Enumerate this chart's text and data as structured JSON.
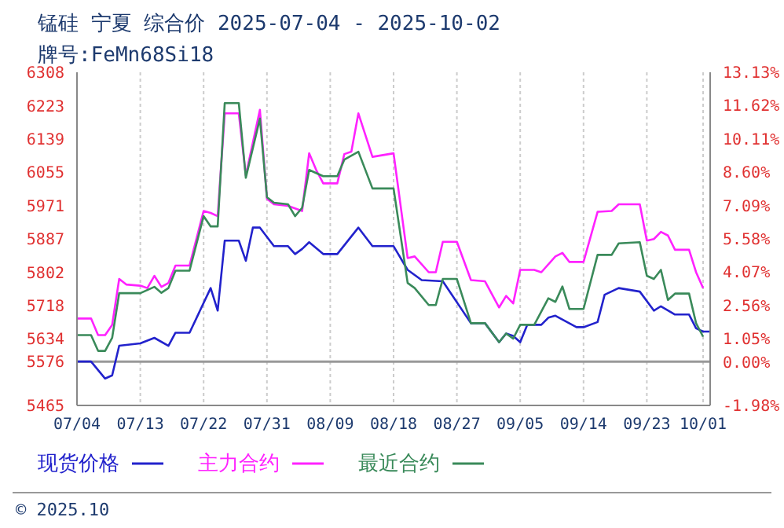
{
  "chart_data": {
    "type": "line",
    "title": "锰硅 宁夏 综合价 2025-07-04 - 2025-10-02",
    "subtitle": "牌号:FeMn68Si18",
    "annotations": [
      "© 2025.10"
    ],
    "xlim": [
      "2025-07-04",
      "2025-10-02"
    ],
    "xticks": [
      {
        "value": "2025-07-04",
        "label": "07/04"
      },
      {
        "value": "2025-07-13",
        "label": "07/13"
      },
      {
        "value": "2025-07-22",
        "label": "07/22"
      },
      {
        "value": "2025-07-31",
        "label": "07/31"
      },
      {
        "value": "2025-08-09",
        "label": "08/09"
      },
      {
        "value": "2025-08-18",
        "label": "08/18"
      },
      {
        "value": "2025-08-27",
        "label": "08/27"
      },
      {
        "value": "2025-09-05",
        "label": "09/05"
      },
      {
        "value": "2025-09-14",
        "label": "09/14"
      },
      {
        "value": "2025-09-23",
        "label": "09/23"
      },
      {
        "value": "2025-10-01",
        "label": "10/01"
      }
    ],
    "ylim": [
      5465,
      6308
    ],
    "yticks": [
      5465,
      5576,
      5634,
      5718,
      5802,
      5887,
      5971,
      6055,
      6139,
      6223,
      6308
    ],
    "y2lim": [
      -1.98,
      13.13
    ],
    "y2ticks": [
      {
        "value": -1.98,
        "label": "-1.98%"
      },
      {
        "value": 0,
        "label": "0.00%"
      },
      {
        "value": 1.05,
        "label": "1.05%"
      },
      {
        "value": 2.56,
        "label": "2.56%"
      },
      {
        "value": 4.07,
        "label": "4.07%"
      },
      {
        "value": 5.58,
        "label": "5.58%"
      },
      {
        "value": 7.09,
        "label": "7.09%"
      },
      {
        "value": 8.6,
        "label": "8.60%"
      },
      {
        "value": 10.11,
        "label": "10.11%"
      },
      {
        "value": 11.62,
        "label": "11.62%"
      },
      {
        "value": 13.13,
        "label": "13.13%"
      }
    ],
    "ref_lines": [
      {
        "axis": "y",
        "value": 5576,
        "color": "#999999"
      }
    ],
    "grid": true,
    "legend": "bottom",
    "marker": "none",
    "line_style": "solid",
    "series": [
      {
        "name": "现货价格",
        "color": "#2222cc",
        "x": [
          "2025-07-04",
          "2025-07-06",
          "2025-07-08",
          "2025-07-09",
          "2025-07-10",
          "2025-07-13",
          "2025-07-15",
          "2025-07-17",
          "2025-07-18",
          "2025-07-20",
          "2025-07-23",
          "2025-07-24",
          "2025-07-25",
          "2025-07-27",
          "2025-07-28",
          "2025-07-29",
          "2025-07-30",
          "2025-08-01",
          "2025-08-03",
          "2025-08-04",
          "2025-08-05",
          "2025-08-06",
          "2025-08-08",
          "2025-08-10",
          "2025-08-13",
          "2025-08-15",
          "2025-08-18",
          "2025-08-20",
          "2025-08-22",
          "2025-08-25",
          "2025-08-29",
          "2025-08-31",
          "2025-09-02",
          "2025-09-03",
          "2025-09-04",
          "2025-09-05",
          "2025-09-06",
          "2025-09-08",
          "2025-09-09",
          "2025-09-10",
          "2025-09-13",
          "2025-09-14",
          "2025-09-16",
          "2025-09-17",
          "2025-09-19",
          "2025-09-22",
          "2025-09-24",
          "2025-09-25",
          "2025-09-27",
          "2025-09-29",
          "2025-09-30",
          "2025-10-01",
          "2025-10-02"
        ],
        "values": [
          5576,
          5576,
          5533,
          5541,
          5616,
          5622,
          5636,
          5616,
          5649,
          5649,
          5762,
          5705,
          5882,
          5882,
          5831,
          5915,
          5915,
          5868,
          5868,
          5848,
          5861,
          5878,
          5848,
          5848,
          5915,
          5868,
          5868,
          5808,
          5782,
          5779,
          5673,
          5673,
          5625,
          5647,
          5641,
          5625,
          5669,
          5669,
          5687,
          5692,
          5663,
          5663,
          5676,
          5745,
          5762,
          5753,
          5705,
          5716,
          5695,
          5695,
          5660,
          5652,
          5652
        ]
      },
      {
        "name": "主力合约",
        "color": "#ff22ff",
        "x": [
          "2025-07-04",
          "2025-07-06",
          "2025-07-07",
          "2025-07-08",
          "2025-07-09",
          "2025-07-10",
          "2025-07-11",
          "2025-07-13",
          "2025-07-14",
          "2025-07-15",
          "2025-07-16",
          "2025-07-17",
          "2025-07-18",
          "2025-07-20",
          "2025-07-22",
          "2025-07-23",
          "2025-07-24",
          "2025-07-25",
          "2025-07-27",
          "2025-07-28",
          "2025-07-29",
          "2025-07-30",
          "2025-07-31",
          "2025-08-01",
          "2025-08-03",
          "2025-08-05",
          "2025-08-06",
          "2025-08-07",
          "2025-08-08",
          "2025-08-10",
          "2025-08-11",
          "2025-08-12",
          "2025-08-13",
          "2025-08-15",
          "2025-08-18",
          "2025-08-20",
          "2025-08-21",
          "2025-08-23",
          "2025-08-24",
          "2025-08-25",
          "2025-08-27",
          "2025-08-29",
          "2025-08-31",
          "2025-09-02",
          "2025-09-03",
          "2025-09-04",
          "2025-09-05",
          "2025-09-07",
          "2025-09-08",
          "2025-09-10",
          "2025-09-11",
          "2025-09-12",
          "2025-09-14",
          "2025-09-16",
          "2025-09-18",
          "2025-09-19",
          "2025-09-22",
          "2025-09-23",
          "2025-09-24",
          "2025-09-25",
          "2025-09-26",
          "2025-09-27",
          "2025-09-29",
          "2025-09-30",
          "2025-10-01"
        ],
        "values": [
          5685,
          5685,
          5643,
          5643,
          5669,
          5785,
          5771,
          5768,
          5762,
          5793,
          5765,
          5775,
          5819,
          5819,
          5957,
          5952,
          5944,
          6204,
          6204,
          6047,
          6130,
          6213,
          5988,
          5974,
          5970,
          5957,
          6103,
          6061,
          6027,
          6027,
          6101,
          6107,
          6204,
          6094,
          6103,
          5838,
          5842,
          5802,
          5802,
          5879,
          5879,
          5782,
          5779,
          5713,
          5742,
          5723,
          5808,
          5808,
          5802,
          5842,
          5851,
          5828,
          5828,
          5955,
          5957,
          5974,
          5974,
          5882,
          5886,
          5904,
          5895,
          5859,
          5859,
          5802,
          5762
        ]
      },
      {
        "name": "最近合约",
        "color": "#3a8a5a",
        "x": [
          "2025-07-04",
          "2025-07-06",
          "2025-07-07",
          "2025-07-08",
          "2025-07-09",
          "2025-07-10",
          "2025-07-13",
          "2025-07-15",
          "2025-07-16",
          "2025-07-17",
          "2025-07-18",
          "2025-07-20",
          "2025-07-22",
          "2025-07-23",
          "2025-07-24",
          "2025-07-25",
          "2025-07-27",
          "2025-07-28",
          "2025-07-30",
          "2025-07-31",
          "2025-08-01",
          "2025-08-03",
          "2025-08-04",
          "2025-08-05",
          "2025-08-06",
          "2025-08-08",
          "2025-08-10",
          "2025-08-11",
          "2025-08-13",
          "2025-08-15",
          "2025-08-18",
          "2025-08-20",
          "2025-08-21",
          "2025-08-23",
          "2025-08-24",
          "2025-08-25",
          "2025-08-27",
          "2025-08-29",
          "2025-08-31",
          "2025-09-02",
          "2025-09-03",
          "2025-09-04",
          "2025-09-05",
          "2025-09-07",
          "2025-09-09",
          "2025-09-10",
          "2025-09-11",
          "2025-09-12",
          "2025-09-14",
          "2025-09-16",
          "2025-09-18",
          "2025-09-19",
          "2025-09-22",
          "2025-09-23",
          "2025-09-24",
          "2025-09-25",
          "2025-09-26",
          "2025-09-27",
          "2025-09-29",
          "2025-09-30",
          "2025-10-01"
        ],
        "values": [
          5643,
          5643,
          5603,
          5603,
          5636,
          5749,
          5749,
          5765,
          5750,
          5762,
          5806,
          5806,
          5944,
          5918,
          5918,
          6230,
          6230,
          6041,
          6191,
          5992,
          5978,
          5974,
          5944,
          5965,
          6061,
          6045,
          6045,
          6087,
          6107,
          6014,
          6014,
          5775,
          5762,
          5719,
          5719,
          5785,
          5785,
          5673,
          5673,
          5625,
          5647,
          5634,
          5669,
          5669,
          5736,
          5727,
          5766,
          5709,
          5709,
          5846,
          5846,
          5875,
          5878,
          5793,
          5785,
          5808,
          5732,
          5748,
          5748,
          5673,
          5639
        ]
      }
    ]
  }
}
